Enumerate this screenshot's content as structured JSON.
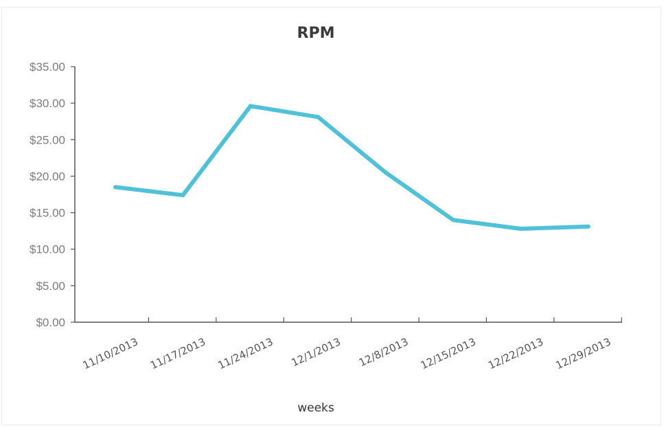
{
  "chart_data": {
    "type": "line",
    "title": "RPM",
    "xlabel": "weeks",
    "ylabel": "",
    "categories": [
      "11/10/2013",
      "11/17/2013",
      "11/24/2013",
      "12/1/2013",
      "12/8/2013",
      "12/15/2013",
      "12/22/2013",
      "12/29/2013"
    ],
    "series": [
      {
        "values": [
          18.5,
          17.4,
          29.6,
          28.1,
          20.5,
          14.0,
          12.8,
          13.1
        ],
        "color": "#4fc1d8"
      }
    ],
    "y_ticks": [
      "$0.00",
      "$5.00",
      "$10.00",
      "$15.00",
      "$20.00",
      "$25.00",
      "$30.00",
      "$35.00"
    ],
    "ylim": [
      0,
      35
    ],
    "grid": false,
    "legend": "none"
  }
}
